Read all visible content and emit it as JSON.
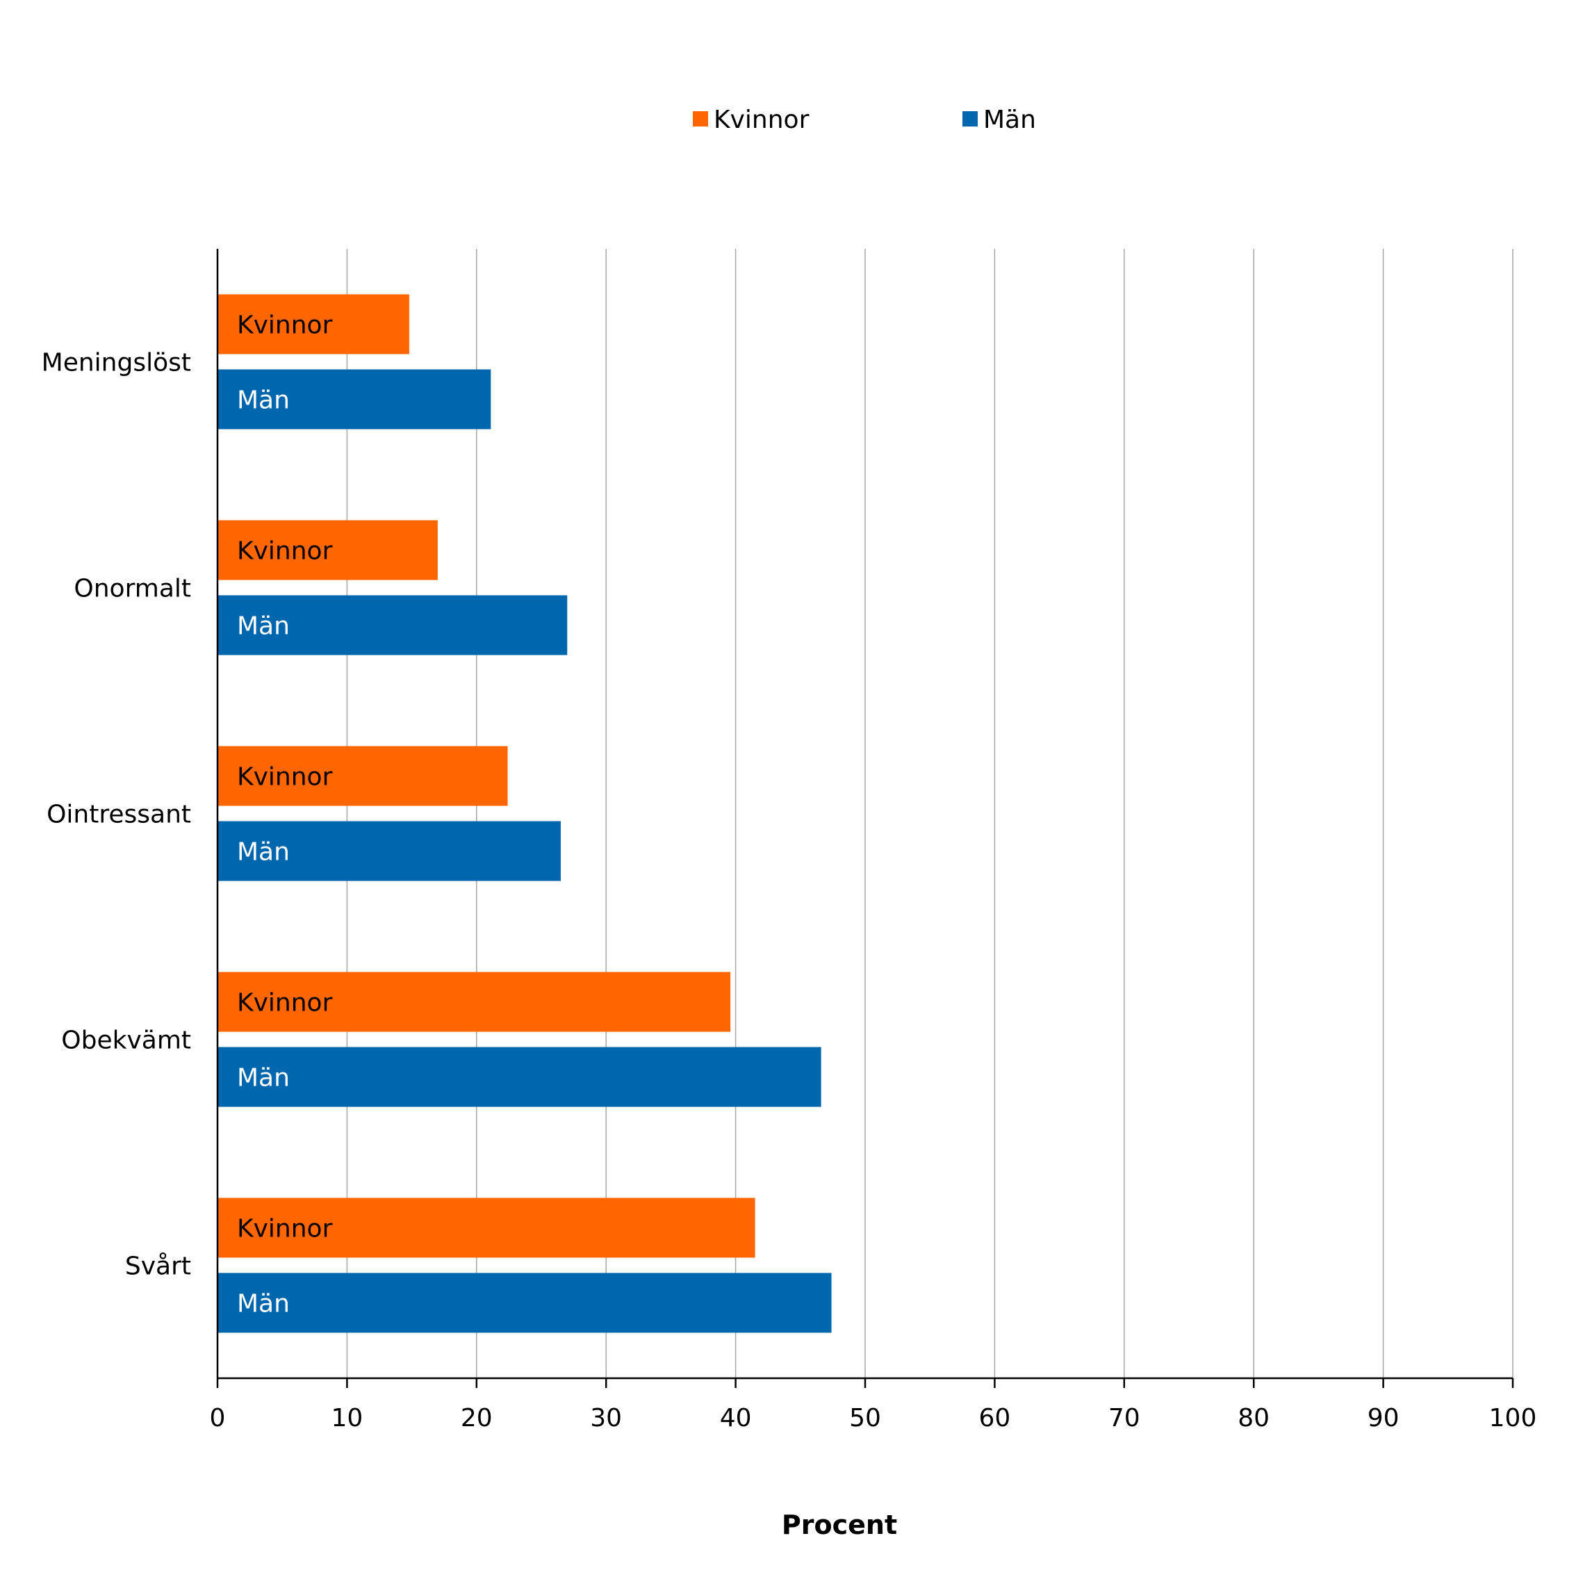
{
  "chart_data": {
    "type": "bar",
    "orientation": "horizontal",
    "categories": [
      "Meningslöst",
      "Onormalt",
      "Ointressant",
      "Obekvämt",
      "Svårt"
    ],
    "series": [
      {
        "name": "Kvinnor",
        "color": "#FF6600",
        "label_color": "#000000",
        "values": [
          14.8,
          17.0,
          22.4,
          39.6,
          41.5
        ]
      },
      {
        "name": "Män",
        "color": "#0066AE",
        "label_color": "#ffffff",
        "values": [
          21.1,
          27.0,
          26.5,
          46.6,
          47.4
        ]
      }
    ],
    "xlabel": "Procent",
    "xlim": [
      0,
      100
    ],
    "xticks": [
      0,
      10,
      20,
      30,
      40,
      50,
      60,
      70,
      80,
      90,
      100
    ],
    "grid": "vertical",
    "legend": "top",
    "bar_labels": "series name inside bar"
  }
}
